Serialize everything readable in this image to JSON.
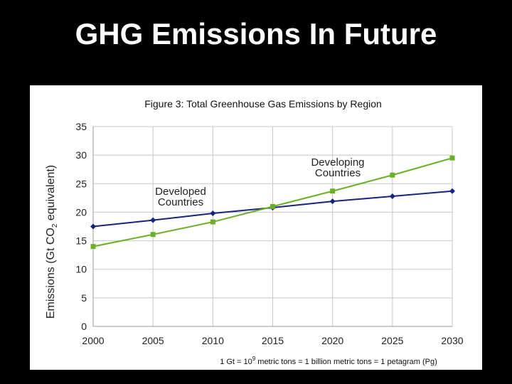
{
  "slide": {
    "title": "GHG Emissions In Future"
  },
  "chart_data": {
    "type": "line",
    "title": "Figure 3: Total Greenhouse Gas Emissions by Region",
    "ylabel_pre": "Emissions (Gt CO",
    "ylabel_sub": "2",
    "ylabel_post": " equivalent)",
    "xlabel": "",
    "x": [
      2000,
      2005,
      2010,
      2015,
      2020,
      2025,
      2030
    ],
    "ylim": [
      0,
      35
    ],
    "yticks": [
      0,
      5,
      10,
      15,
      20,
      25,
      30,
      35
    ],
    "grid": true,
    "series": [
      {
        "name": "Developed Countries",
        "label_lines": [
          "Developed",
          "Countries"
        ],
        "color": "#1a237e",
        "marker": "diamond",
        "values": [
          17.5,
          18.6,
          19.8,
          20.8,
          21.9,
          22.8,
          23.7
        ]
      },
      {
        "name": "Developing Countries",
        "label_lines": [
          "Developing",
          "Countries"
        ],
        "color": "#6ab023",
        "marker": "square",
        "values": [
          14.0,
          16.1,
          18.3,
          21.0,
          23.7,
          26.5,
          29.5
        ]
      }
    ],
    "footnote": {
      "pre": "1 Gt = 10",
      "sup": "9",
      "post": " metric tons = 1 billion metric tons = 1 petagram (Pg)"
    }
  }
}
